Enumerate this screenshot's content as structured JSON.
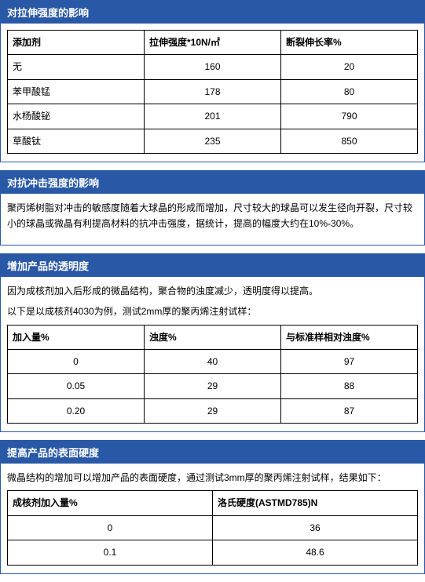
{
  "section1": {
    "title": "对拉伸强度的影响",
    "columns": [
      "添加剂",
      "拉伸强度*10N/㎡",
      "断裂伸长率%"
    ],
    "rows": [
      [
        "无",
        "160",
        "20"
      ],
      [
        "苯甲酸锰",
        "178",
        "80"
      ],
      [
        "水杨酸铋",
        "201",
        "790"
      ],
      [
        "草酸钛",
        "235",
        "850"
      ]
    ]
  },
  "section2": {
    "title": "对抗冲击强度的影响",
    "text": "聚丙烯树脂对冲击的敏感度随着大球晶的形成而增加，尺寸较大的球晶可以发生径向开裂，尺寸较小的球晶或微晶有利提高材料的抗冲击强度，据统计，提高的幅度大约在10%-30%。"
  },
  "section3": {
    "title": "增加产品的透明度",
    "text1": "因为成核剂加入后形成的微晶结构，聚合物的浊度减少，透明度得以提高。",
    "text2": "以下是以成核剂4030为例，测试2mm厚的聚丙烯注射试样：",
    "columns": [
      "加入量%",
      "浊度%",
      "与标准样相对浊度%"
    ],
    "rows": [
      [
        "0",
        "40",
        "97"
      ],
      [
        "0.05",
        "29",
        "88"
      ],
      [
        "0.20",
        "29",
        "87"
      ]
    ]
  },
  "section4": {
    "title": "提高产品的表面硬度",
    "text": "微晶结构的增加可以增加产品的表面硬度，通过测试3mm厚的聚丙烯注射试样，结果如下：",
    "columns": [
      "成核剂加入量%",
      "洛氏硬度(ASTMD785)N"
    ],
    "rows": [
      [
        "0",
        "36"
      ],
      [
        "0.1",
        "48.6"
      ]
    ]
  }
}
